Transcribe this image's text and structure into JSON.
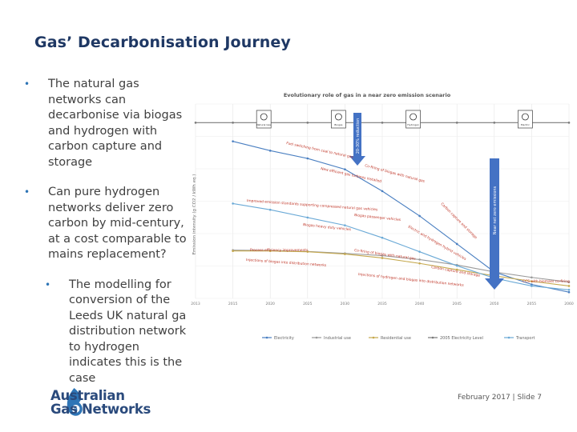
{
  "slide": {
    "title": "Gas’ Decarbonisation Journey",
    "footer": "February 2017 | Slide 7",
    "bullets": [
      "The natural gas networks can decarbonise via biogas and hydrogen with carbon capture and storage",
      "Can pure hydrogen networks deliver zero carbon by mid-century, at a cost comparable to mains replacement?"
    ],
    "sub_bullets": [
      "The modelling for conversion of the Leeds UK natural gas distribution network to hydrogen indicates this is the case"
    ],
    "logo": {
      "line1": "Australian",
      "line2": "Gas Networks"
    },
    "colors": {
      "title": "#1f3864",
      "bullet": "#2e75b6",
      "logo_blue": "#2a4a7c"
    }
  },
  "chart_data": {
    "type": "line",
    "title": "Evolutionary role of gas in a near zero emission scenario",
    "ylabel": "Emission intensity (g CO2 / kWh eq.)",
    "x_ticks": [
      "2013",
      "2015",
      "2020",
      "2025",
      "2030",
      "2035",
      "2040",
      "2045",
      "2050",
      "2055",
      "2060"
    ],
    "icons": [
      "Natural Gas",
      "Biogas",
      "Hydrogen",
      "Electric"
    ],
    "arrow_labels": [
      "20-30% reduction",
      "Near net zero emissions"
    ],
    "annotations": [
      "Fuel switching from coal to natural gas",
      "New efficient gas turbines installed",
      "Co-firing of biogas with natural gas",
      "Improved emission standards supporting compressed natural gas vehicles",
      "Biogas passenger vehicles",
      "Biogas heavy duty vehicles",
      "Carbon capture and storage",
      "Electric and hydrogen hybrid vehicles",
      "Process efficiency improvements",
      "Co-firing of biogas with natural gas",
      "Injections of biogas into distribution networks",
      "Carbon capture and storage",
      "Injections of hydrogen and biogas into distribution networks",
      "CCS with biomass co-firing"
    ],
    "legend": [
      "Electricity",
      "Industrial use",
      "Residential use",
      "2005 Electricity Level",
      "Transport"
    ],
    "series": [
      {
        "name": "Electricity",
        "color": "#4a7fc1",
        "values": [
          null,
          960,
          900,
          850,
          780,
          640,
          480,
          300,
          120,
          40,
          -10
        ]
      },
      {
        "name": "Industrial use",
        "color": "#9a9a9a",
        "values": [
          null,
          260,
          258,
          252,
          240,
          225,
          200,
          165,
          120,
          85,
          55
        ]
      },
      {
        "name": "Residential use",
        "color": "#c5a84d",
        "values": [
          null,
          255,
          255,
          250,
          235,
          210,
          175,
          135,
          95,
          60,
          30
        ]
      },
      {
        "name": "2005 Electricity Level",
        "color": "#7a7a7a",
        "values": [
          1080,
          1080,
          1080,
          1080,
          1080,
          1080,
          1080,
          1080,
          1080,
          1080,
          1080
        ]
      },
      {
        "name": "Transport",
        "color": "#6aa9d6",
        "values": [
          null,
          560,
          520,
          470,
          420,
          340,
          250,
          160,
          80,
          30,
          5
        ]
      }
    ],
    "grid": true,
    "legend_position": "bottom"
  }
}
